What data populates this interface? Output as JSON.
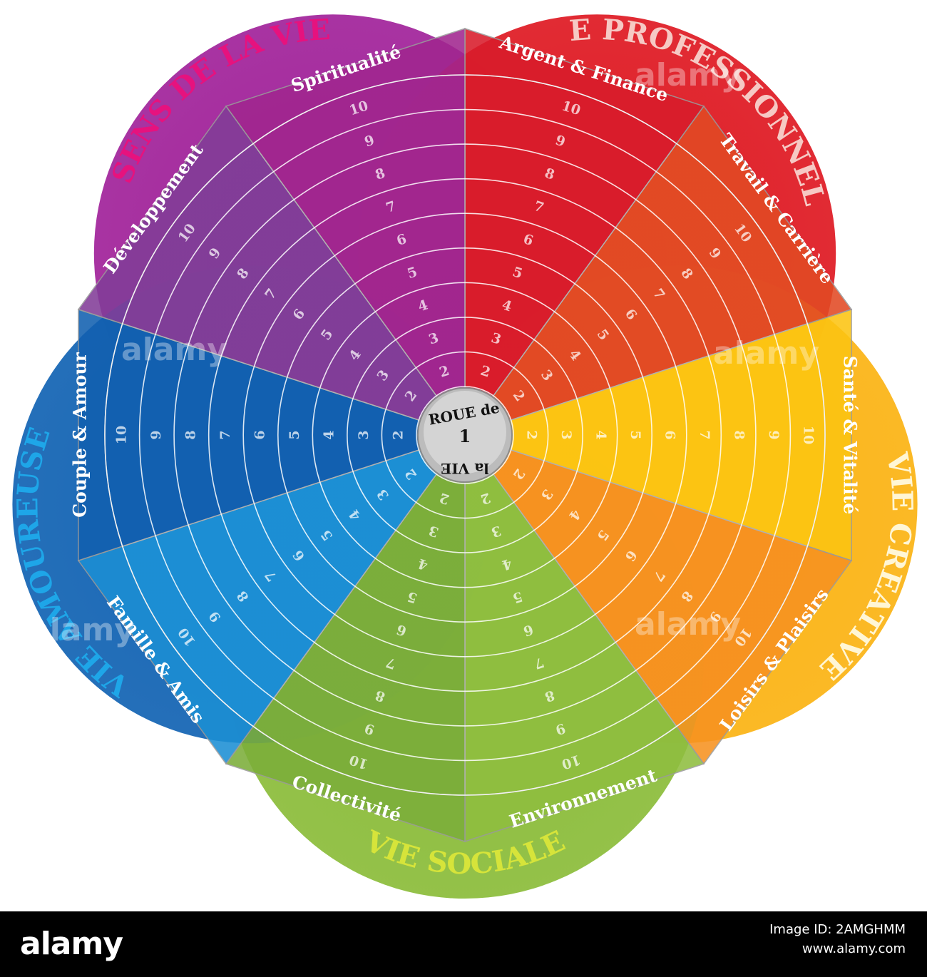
{
  "petals": [
    {
      "id": "sens",
      "title": "SENS DE LA VIE",
      "color": "#a2259b",
      "title_color": "#e6127e"
    },
    {
      "id": "pro",
      "title": "VIE PROFESSIONNELLE",
      "color": "#df1c25",
      "title_color": "#f6c9c4"
    },
    {
      "id": "creative",
      "title": "VIE CREATIVE",
      "color": "#fbb416",
      "title_color": "#fff6d5"
    },
    {
      "id": "sociale",
      "title": "VIE SOCIALE",
      "color": "#8cbd3c",
      "title_color": "#d6e43a"
    },
    {
      "id": "amoureuse",
      "title": "VIE AMOUREUSE",
      "color": "#1565b4",
      "title_color": "#1ea6e8"
    }
  ],
  "segments": [
    {
      "label": "Argent & Finance",
      "color": "#d91c2b"
    },
    {
      "label": "Travail & Carrière",
      "color": "#e24a24"
    },
    {
      "label": "Santé & Vitalité",
      "color": "#fcc412"
    },
    {
      "label": "Loisirs & Plaisirs",
      "color": "#f79220"
    },
    {
      "label": "Environnement",
      "color": "#8fbe3f"
    },
    {
      "label": "Collectivité",
      "color": "#7cae3a"
    },
    {
      "label": "Famille & Amis",
      "color": "#1c8fd4"
    },
    {
      "label": "Couple & Amour",
      "color": "#1260b0"
    },
    {
      "label": "Développement",
      "color": "#823d98"
    },
    {
      "label": "Spiritualité",
      "color": "#a1268f"
    }
  ],
  "scale": [
    "2",
    "3",
    "4",
    "5",
    "6",
    "7",
    "8",
    "9",
    "10"
  ],
  "hub": {
    "line1": "ROUE de",
    "line2": "1",
    "line3": "la VIE"
  },
  "watermark": "alamy",
  "footer": {
    "brand": "alamy",
    "image_id": "Image ID: 2AMGHMM",
    "url": "www.alamy.com"
  }
}
